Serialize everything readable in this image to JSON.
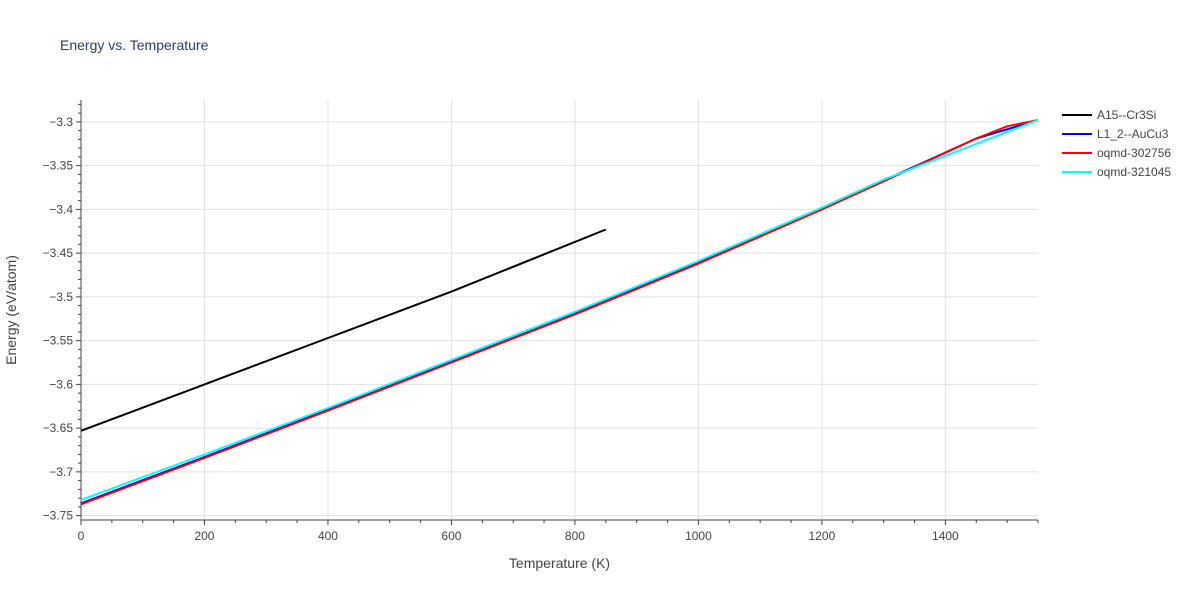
{
  "colors": {
    "background": "#ffffff",
    "grid": "#e2e2e2",
    "axis": "#444444",
    "text": "#444444",
    "title": "#2a3f5f"
  },
  "chart_data": {
    "type": "line",
    "title": "Energy vs. Temperature",
    "xlabel": "Temperature (K)",
    "ylabel": "Energy (eV/atom)",
    "xlim": [
      0,
      1550
    ],
    "ylim": [
      -3.755,
      -3.275
    ],
    "xticks": [
      0,
      200,
      400,
      600,
      800,
      1000,
      1200,
      1400
    ],
    "xtick_labels": [
      "0",
      "200",
      "400",
      "600",
      "800",
      "1000",
      "1200",
      "1400"
    ],
    "yticks": [
      -3.3,
      -3.35,
      -3.4,
      -3.45,
      -3.5,
      -3.55,
      -3.6,
      -3.65,
      -3.7,
      -3.75
    ],
    "ytick_labels": [
      "−3.3",
      "−3.35",
      "−3.4",
      "−3.45",
      "−3.5",
      "−3.55",
      "−3.6",
      "−3.65",
      "−3.7",
      "−3.75"
    ],
    "grid": true,
    "legend_position": "top-right outside",
    "series": [
      {
        "name": "A15--Cr3Si",
        "color": "#000000",
        "x": [
          0,
          200,
          400,
          600,
          850
        ],
        "y": [
          -3.653,
          -3.6,
          -3.547,
          -3.494,
          -3.423
        ]
      },
      {
        "name": "L1_2--AuCu3",
        "color": "#0000ff",
        "x": [
          0,
          200,
          400,
          600,
          800,
          1000,
          1200,
          1300,
          1450,
          1550
        ],
        "y": [
          -3.736,
          -3.683,
          -3.629,
          -3.574,
          -3.519,
          -3.461,
          -3.399,
          -3.367,
          -3.319,
          -3.298
        ]
      },
      {
        "name": "oqmd-302756",
        "color": "#ff0000",
        "x": [
          0,
          200,
          400,
          600,
          800,
          1000,
          1200,
          1300,
          1450,
          1500,
          1550
        ],
        "y": [
          -3.737,
          -3.684,
          -3.63,
          -3.575,
          -3.52,
          -3.462,
          -3.4,
          -3.368,
          -3.319,
          -3.305,
          -3.298
        ]
      },
      {
        "name": "oqmd-321045",
        "color": "#00ffff",
        "x": [
          0,
          200,
          400,
          600,
          800,
          1000,
          1200,
          1300,
          1550
        ],
        "y": [
          -3.732,
          -3.68,
          -3.627,
          -3.572,
          -3.517,
          -3.459,
          -3.398,
          -3.366,
          -3.298
        ]
      }
    ]
  }
}
